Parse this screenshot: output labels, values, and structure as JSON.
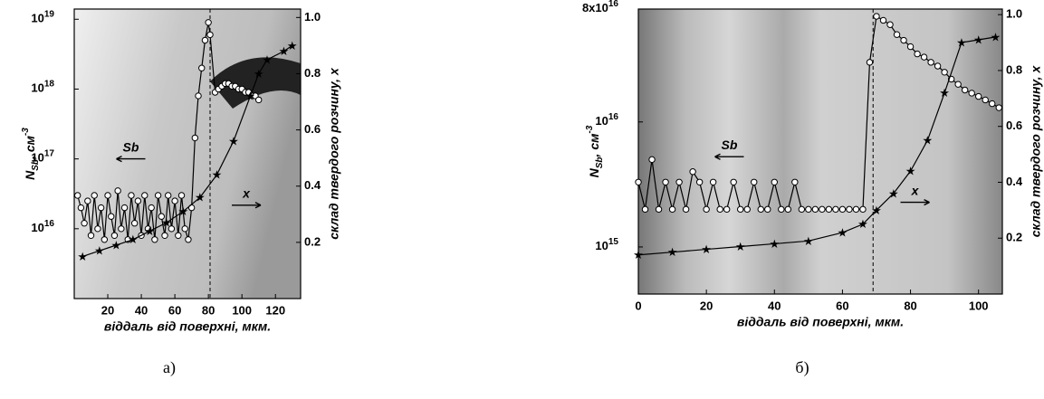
{
  "chart_data": [
    {
      "type": "line",
      "caption": "а)",
      "xlabel": "віддаль від поверхні, мкм.",
      "ylabel": {
        "main": "N",
        "sub": "Sb",
        "unit": ", см",
        "sup": "-3"
      },
      "y2label": "склад твердого розчину, x",
      "xlim": [
        0,
        135
      ],
      "xticks": [
        20,
        40,
        60,
        80,
        100,
        120
      ],
      "ylog": true,
      "ylim": [
        1000000000000000.0,
        1.4e+19
      ],
      "yticks": [
        {
          "value": 1e+16,
          "label": "10",
          "power": "16"
        },
        {
          "value": 1e+17,
          "label": "10",
          "power": "17"
        },
        {
          "value": 1e+18,
          "label": "10",
          "power": "18"
        },
        {
          "value": 1e+19,
          "label": "10",
          "power": "19"
        }
      ],
      "y2lim": [
        0,
        1.03
      ],
      "y2ticks": [
        0.2,
        0.4,
        0.6,
        0.8,
        {
          "value": 1,
          "label": "1.0"
        }
      ],
      "vline": 81,
      "series": [
        {
          "name": "Sb",
          "color": "#000000",
          "marker": "circle",
          "x": [
            2,
            4,
            6,
            8,
            10,
            12,
            14,
            16,
            18,
            20,
            22,
            24,
            26,
            28,
            30,
            32,
            34,
            36,
            38,
            40,
            42,
            44,
            46,
            48,
            50,
            52,
            54,
            56,
            58,
            60,
            62,
            64,
            66,
            68,
            70,
            72,
            74,
            76,
            78,
            80,
            81,
            84,
            86,
            88,
            90,
            92,
            94,
            96,
            98,
            100,
            102,
            104,
            106,
            108,
            110
          ],
          "values": [
            3e+16,
            2e+16,
            1.2e+16,
            2.5e+16,
            8000000000000000.0,
            3e+16,
            1e+16,
            2e+16,
            7000000000000000.0,
            3e+16,
            1.5e+16,
            8000000000000000.0,
            3.5e+16,
            1e+16,
            2e+16,
            7000000000000000.0,
            3e+16,
            1.2e+16,
            2.5e+16,
            8000000000000000.0,
            3e+16,
            1e+16,
            2e+16,
            7000000000000000.0,
            3e+16,
            1.5e+16,
            8000000000000000.0,
            3e+16,
            1e+16,
            2.5e+16,
            8000000000000000.0,
            3e+16,
            1e+16,
            7000000000000000.0,
            2e+16,
            2e+17,
            8e+17,
            2e+18,
            5e+18,
            9e+18,
            6e+18,
            9e+17,
            1e+18,
            1.1e+18,
            1.2e+18,
            1.2e+18,
            1.1e+18,
            1.1e+18,
            1e+18,
            1e+18,
            9e+17,
            9e+17,
            8e+17,
            8e+17,
            7e+17
          ]
        },
        {
          "name": "x",
          "color": "#000000",
          "marker": "star",
          "axis": "y2",
          "x": [
            5,
            15,
            25,
            35,
            45,
            55,
            65,
            75,
            85,
            95,
            105,
            110,
            115,
            125,
            130
          ],
          "values": [
            0.15,
            0.17,
            0.19,
            0.21,
            0.24,
            0.27,
            0.31,
            0.36,
            0.44,
            0.56,
            0.72,
            0.8,
            0.85,
            0.88,
            0.9
          ]
        }
      ]
    },
    {
      "type": "line",
      "caption": "б)",
      "xlabel": "віддаль від поверхні, мкм.",
      "ylabel": {
        "main": "N",
        "sub": "Sb",
        "unit": ", см",
        "sup": "-3"
      },
      "y2label": "склад твердого розчину, x",
      "xlim": [
        0,
        107
      ],
      "xticks": [
        0,
        20,
        40,
        60,
        80,
        100
      ],
      "ylog": true,
      "ylim": [
        420000000000000.0,
        8e+16
      ],
      "yticks": [
        {
          "value": 1000000000000000.0,
          "label": "10",
          "power": "15"
        },
        {
          "value": 1e+16,
          "label": "10",
          "power": "16"
        },
        {
          "value": 8e+16,
          "label": "8x10",
          "power": "16"
        }
      ],
      "y2lim": [
        0,
        1.02
      ],
      "y2ticks": [
        0.2,
        0.4,
        0.6,
        0.8,
        {
          "value": 1,
          "label": "1.0"
        }
      ],
      "vline": 69,
      "series": [
        {
          "name": "Sb",
          "color": "#000000",
          "marker": "circle",
          "x": [
            0,
            2,
            4,
            6,
            8,
            10,
            12,
            14,
            16,
            18,
            20,
            22,
            24,
            26,
            28,
            30,
            32,
            34,
            36,
            38,
            40,
            42,
            44,
            46,
            48,
            50,
            52,
            54,
            56,
            58,
            60,
            62,
            64,
            66,
            68,
            70,
            72,
            74,
            76,
            78,
            80,
            82,
            84,
            86,
            88,
            90,
            92,
            94,
            96,
            98,
            100,
            102,
            104,
            106
          ],
          "values": [
            3300000000000000.0,
            2000000000000000.0,
            5000000000000000.0,
            2000000000000000.0,
            3300000000000000.0,
            2000000000000000.0,
            3300000000000000.0,
            2000000000000000.0,
            4000000000000000.0,
            3300000000000000.0,
            2000000000000000.0,
            3300000000000000.0,
            2000000000000000.0,
            2000000000000000.0,
            3300000000000000.0,
            2000000000000000.0,
            2000000000000000.0,
            3300000000000000.0,
            2000000000000000.0,
            2000000000000000.0,
            3300000000000000.0,
            2000000000000000.0,
            2000000000000000.0,
            3300000000000000.0,
            2000000000000000.0,
            2000000000000000.0,
            2000000000000000.0,
            2000000000000000.0,
            2000000000000000.0,
            2000000000000000.0,
            2000000000000000.0,
            2000000000000000.0,
            2000000000000000.0,
            2000000000000000.0,
            3e+16,
            7e+16,
            6.5e+16,
            6e+16,
            5e+16,
            4.5e+16,
            4e+16,
            3.5e+16,
            3.3e+16,
            3e+16,
            2.8e+16,
            2.5e+16,
            2.2e+16,
            2e+16,
            1.8e+16,
            1.7e+16,
            1.6e+16,
            1.5e+16,
            1.4e+16,
            1.3e+16
          ]
        },
        {
          "name": "x",
          "color": "#000000",
          "marker": "star",
          "axis": "y2",
          "x": [
            0,
            10,
            20,
            30,
            40,
            50,
            60,
            66,
            70,
            75,
            80,
            85,
            90,
            95,
            100,
            105
          ],
          "values": [
            0.14,
            0.15,
            0.16,
            0.17,
            0.18,
            0.19,
            0.22,
            0.25,
            0.3,
            0.36,
            0.44,
            0.55,
            0.72,
            0.9,
            0.91,
            0.92
          ]
        }
      ]
    }
  ]
}
